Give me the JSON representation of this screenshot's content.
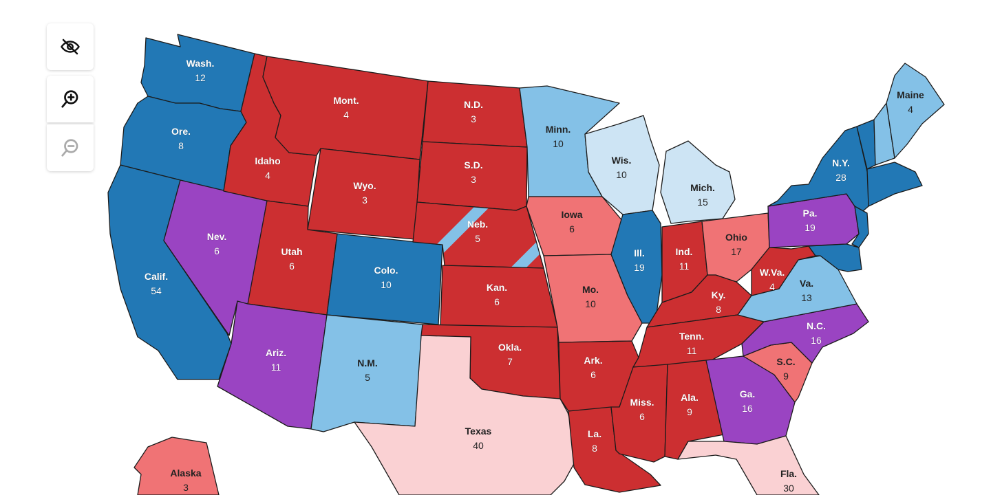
{
  "controls": [
    {
      "id": "hide",
      "icon": "eye-off-icon"
    },
    {
      "id": "zoomin",
      "icon": "zoom-in-icon"
    },
    {
      "id": "zoomout",
      "icon": "zoom-out-icon",
      "disabled": true
    }
  ],
  "colors": {
    "safe_d": "#2278b5",
    "likely_d": "#84c1e7",
    "lean_d": "#cde4f4",
    "tossup": "#9a44c2",
    "lean_r": "#fad1d3",
    "likely_r": "#f07375",
    "safe_r": "#cc2f31"
  },
  "states": {
    "wa": {
      "name": "Wash.",
      "ev": "12",
      "rating": "safe_d"
    },
    "or": {
      "name": "Ore.",
      "ev": "8",
      "rating": "safe_d"
    },
    "ca": {
      "name": "Calif.",
      "ev": "54",
      "rating": "safe_d"
    },
    "nv": {
      "name": "Nev.",
      "ev": "6",
      "rating": "tossup"
    },
    "id": {
      "name": "Idaho",
      "ev": "4",
      "rating": "safe_r"
    },
    "mt": {
      "name": "Mont.",
      "ev": "4",
      "rating": "safe_r"
    },
    "wy": {
      "name": "Wyo.",
      "ev": "3",
      "rating": "safe_r"
    },
    "ut": {
      "name": "Utah",
      "ev": "6",
      "rating": "safe_r"
    },
    "az": {
      "name": "Ariz.",
      "ev": "11",
      "rating": "tossup"
    },
    "co": {
      "name": "Colo.",
      "ev": "10",
      "rating": "safe_d"
    },
    "nm": {
      "name": "N.M.",
      "ev": "5",
      "rating": "likely_d"
    },
    "nd": {
      "name": "N.D.",
      "ev": "3",
      "rating": "safe_r"
    },
    "sd": {
      "name": "S.D.",
      "ev": "3",
      "rating": "safe_r"
    },
    "ne": {
      "name": "Neb.",
      "ev": "5",
      "rating": "safe_r"
    },
    "ks": {
      "name": "Kan.",
      "ev": "6",
      "rating": "safe_r"
    },
    "ok": {
      "name": "Okla.",
      "ev": "7",
      "rating": "safe_r"
    },
    "tx": {
      "name": "Texas",
      "ev": "40",
      "rating": "lean_r"
    },
    "mn": {
      "name": "Minn.",
      "ev": "10",
      "rating": "likely_d"
    },
    "ia": {
      "name": "Iowa",
      "ev": "6",
      "rating": "likely_r"
    },
    "mo": {
      "name": "Mo.",
      "ev": "10",
      "rating": "likely_r"
    },
    "ar": {
      "name": "Ark.",
      "ev": "6",
      "rating": "safe_r"
    },
    "la": {
      "name": "La.",
      "ev": "8",
      "rating": "safe_r"
    },
    "wi": {
      "name": "Wis.",
      "ev": "10",
      "rating": "lean_d"
    },
    "il": {
      "name": "Ill.",
      "ev": "19",
      "rating": "safe_d"
    },
    "mi": {
      "name": "Mich.",
      "ev": "15",
      "rating": "lean_d"
    },
    "in": {
      "name": "Ind.",
      "ev": "11",
      "rating": "safe_r"
    },
    "oh": {
      "name": "Ohio",
      "ev": "17",
      "rating": "likely_r"
    },
    "ky": {
      "name": "Ky.",
      "ev": "8",
      "rating": "safe_r"
    },
    "tn": {
      "name": "Tenn.",
      "ev": "11",
      "rating": "safe_r"
    },
    "ms": {
      "name": "Miss.",
      "ev": "6",
      "rating": "safe_r"
    },
    "al": {
      "name": "Ala.",
      "ev": "9",
      "rating": "safe_r"
    },
    "ga": {
      "name": "Ga.",
      "ev": "16",
      "rating": "tossup"
    },
    "fl": {
      "name": "Fla.",
      "ev": "30",
      "rating": "lean_r"
    },
    "sc": {
      "name": "S.C.",
      "ev": "9",
      "rating": "likely_r"
    },
    "nc": {
      "name": "N.C.",
      "ev": "16",
      "rating": "tossup"
    },
    "va": {
      "name": "Va.",
      "ev": "13",
      "rating": "likely_d"
    },
    "wv": {
      "name": "W.Va.",
      "ev": "4",
      "rating": "safe_r"
    },
    "pa": {
      "name": "Pa.",
      "ev": "19",
      "rating": "tossup"
    },
    "ny": {
      "name": "N.Y.",
      "ev": "28",
      "rating": "safe_d"
    },
    "me": {
      "name": "Maine",
      "ev": "4",
      "rating": "likely_d"
    },
    "ak": {
      "name": "Alaska",
      "ev": "3",
      "rating": "likely_r"
    }
  }
}
